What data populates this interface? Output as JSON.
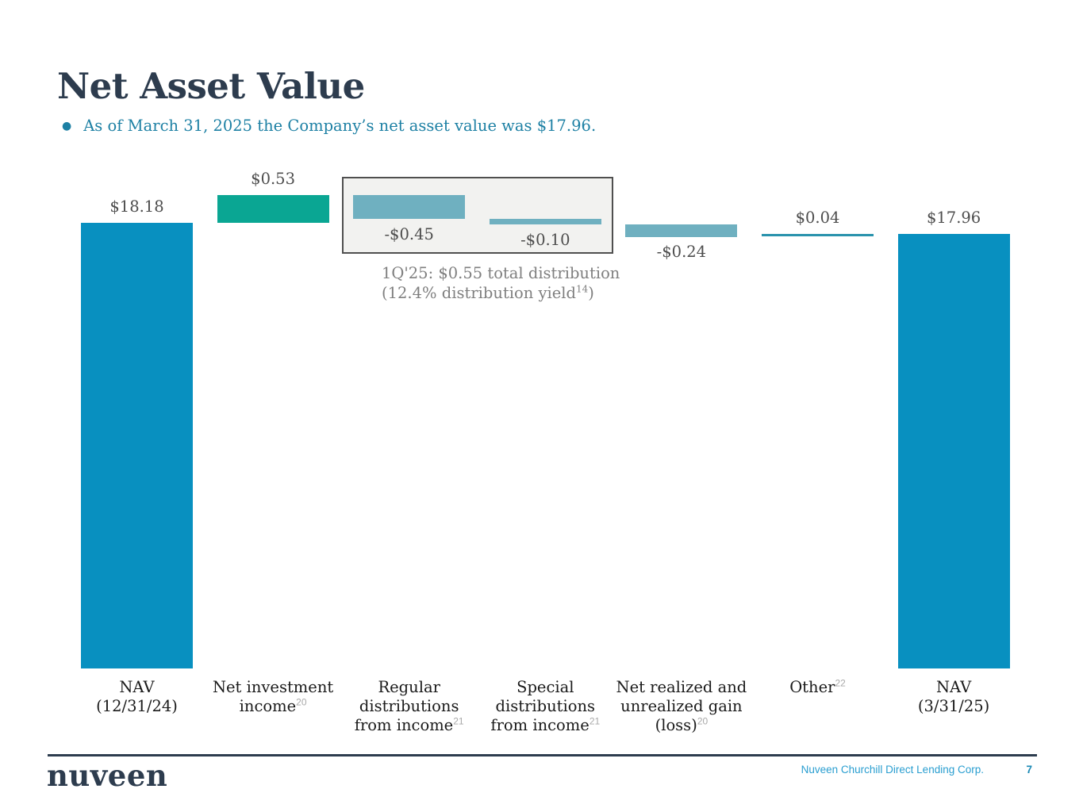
{
  "slide": {
    "title": "Net Asset Value",
    "bullet": "As of March 31, 2025 the Company’s net asset value was $17.96."
  },
  "chart_data": {
    "type": "bar",
    "subtype": "waterfall",
    "title": "",
    "xlabel": "",
    "ylabel": "",
    "grid": false,
    "categories": [
      "NAV (12/31/24)",
      "Net investment income",
      "Regular distributions from income",
      "Special distributions from income",
      "Net realized and unrealized gain (loss)",
      "Other",
      "NAV (3/31/25)"
    ],
    "values": [
      18.18,
      0.53,
      -0.45,
      -0.1,
      -0.24,
      0.04,
      17.96
    ],
    "colors": {
      "total": "#0890c0",
      "positive": "#0aa693",
      "negative": "#6fb0c0",
      "other_line": "#2a93ad"
    },
    "bars": [
      {
        "name": "nav-start",
        "value": 18.18,
        "display": "$18.18",
        "kind": "total",
        "color": "total",
        "label_pos": "above",
        "label_lines": [
          "NAV",
          "(12/31/24)"
        ],
        "sup": null,
        "in_box": false
      },
      {
        "name": "net-investment-income",
        "value": 0.53,
        "display": "$0.53",
        "kind": "delta",
        "color": "positive",
        "label_pos": "above",
        "label_lines": [
          "Net investment",
          "income"
        ],
        "sup": {
          "text": "20",
          "line": 1
        },
        "in_box": false
      },
      {
        "name": "regular-distributions",
        "value": -0.45,
        "display": "-$0.45",
        "kind": "delta",
        "color": "negative",
        "label_pos": "below",
        "label_lines": [
          "Regular",
          "distributions",
          "from income"
        ],
        "sup": {
          "text": "21",
          "line": 2
        },
        "in_box": true
      },
      {
        "name": "special-distributions",
        "value": -0.1,
        "display": "-$0.10",
        "kind": "delta",
        "color": "negative",
        "label_pos": "below",
        "label_lines": [
          "Special",
          "distributions",
          "from income"
        ],
        "sup": {
          "text": "21",
          "line": 2
        },
        "in_box": true
      },
      {
        "name": "net-realized-unrealized-gain-loss",
        "value": -0.24,
        "display": "-$0.24",
        "kind": "delta",
        "color": "negative",
        "label_pos": "below",
        "label_lines": [
          "Net realized and",
          "unrealized gain",
          "(loss)"
        ],
        "sup": {
          "text": "20",
          "line": 2
        },
        "in_box": false
      },
      {
        "name": "other",
        "value": 0.04,
        "display": "$0.04",
        "kind": "delta",
        "color": "other_line",
        "label_pos": "above",
        "label_lines": [
          "Other"
        ],
        "sup": {
          "text": "22",
          "line": 0
        },
        "in_box": false
      },
      {
        "name": "nav-end",
        "value": 17.96,
        "display": "$17.96",
        "kind": "total",
        "color": "total",
        "label_pos": "above",
        "label_lines": [
          "NAV",
          "(3/31/25)"
        ],
        "sup": null,
        "in_box": false
      }
    ],
    "annotation": {
      "line1": "1Q'25: $0.55 total distribution",
      "line2_pre": "(12.4% distribution yield",
      "line2_sup": "14",
      "line2_post": ")"
    }
  },
  "footer": {
    "brand": "nuveen",
    "company": "Nuveen Churchill Direct Lending Corp.",
    "page": "7"
  }
}
